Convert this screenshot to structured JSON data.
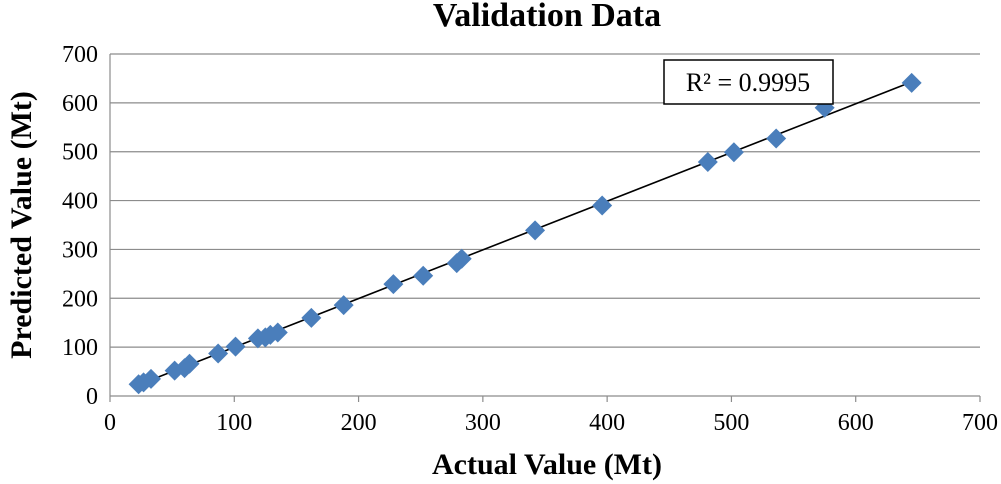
{
  "chart_data": {
    "type": "scatter",
    "title": "Validation Data",
    "xlabel": "Actual Value (Mt)",
    "ylabel": "Predicted Value (Mt)",
    "xlim": [
      0,
      700
    ],
    "ylim": [
      0,
      700
    ],
    "xticks": [
      0,
      100,
      200,
      300,
      400,
      500,
      600,
      700
    ],
    "yticks": [
      0,
      100,
      200,
      300,
      400,
      500,
      600,
      700
    ],
    "grid": true,
    "legend": "none",
    "marker_color": "#4a7ebb",
    "annotation": "R² = 0.9995",
    "trendline": {
      "x": [
        22,
        644
      ],
      "y": [
        22,
        642
      ]
    },
    "series": [
      {
        "name": "Validation",
        "x": [
          23,
          27,
          33,
          52,
          60,
          64,
          87,
          101,
          119,
          125,
          129,
          135,
          162,
          188,
          228,
          252,
          279,
          283,
          342,
          396,
          481,
          502,
          536,
          575,
          645
        ],
        "y": [
          24,
          28,
          35,
          52,
          57,
          66,
          87,
          101,
          118,
          120,
          125,
          130,
          160,
          186,
          229,
          246,
          272,
          281,
          339,
          390,
          479,
          499,
          527,
          590,
          641
        ]
      }
    ]
  }
}
